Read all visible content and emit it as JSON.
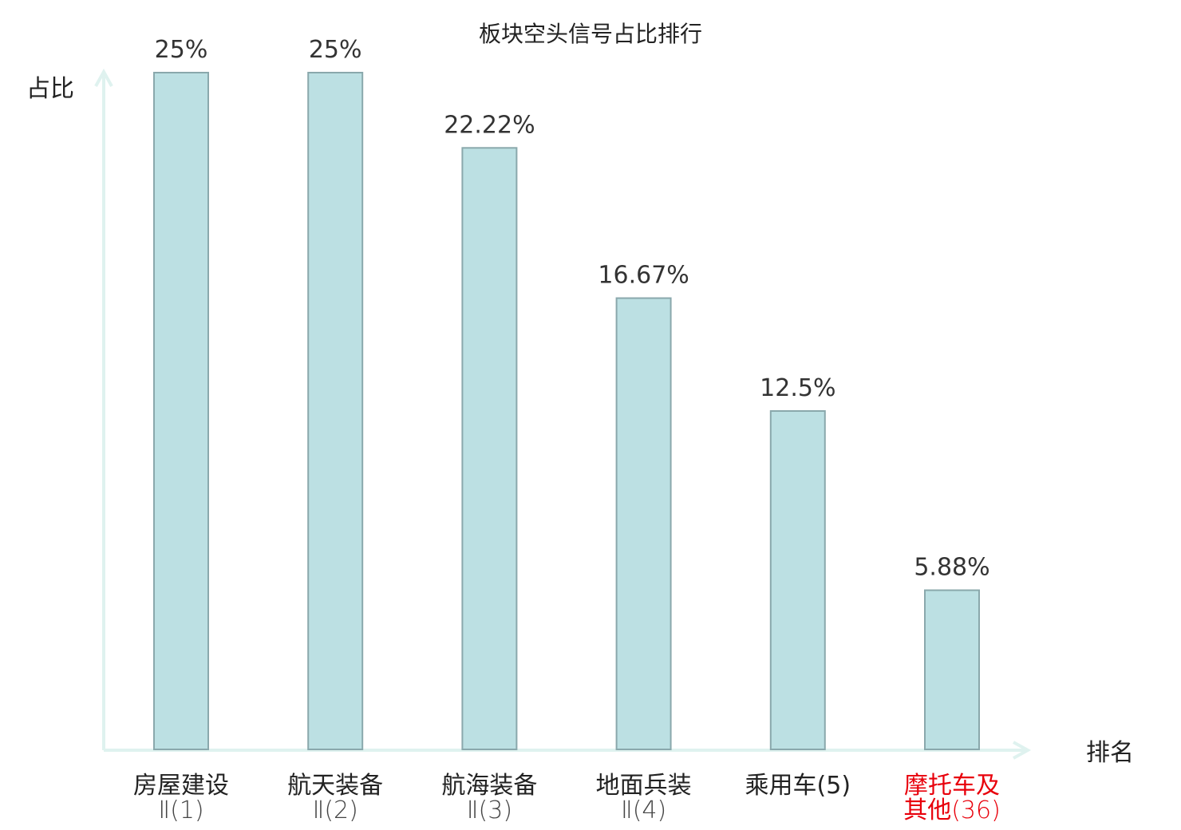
{
  "chart_data": {
    "type": "bar",
    "title": "板块空头信号占比排行",
    "ylabel": "占比",
    "xlabel": "排名",
    "categories": [
      [
        "房屋建设",
        "Ⅱ(1)"
      ],
      [
        "航天装备",
        "Ⅱ(2)"
      ],
      [
        "航海装备",
        "Ⅱ(3)"
      ],
      [
        "地面兵装",
        "Ⅱ(4)"
      ],
      [
        "乘用车(5)"
      ],
      [
        "摩托车及",
        "其他(36)"
      ]
    ],
    "values": [
      25,
      25,
      22.22,
      16.67,
      12.5,
      5.88
    ],
    "value_labels": [
      "25%",
      "25%",
      "22.22%",
      "16.67%",
      "12.5%",
      "5.88%"
    ],
    "highlight_index": 5,
    "ylim": [
      0,
      25
    ],
    "grid": false,
    "legend": "none"
  },
  "colors": {
    "bar_fill": "#bce0e3",
    "bar_stroke": "#8aa8ac",
    "axis": "#dff2ef",
    "text": "#222222",
    "value_text": "#333333",
    "highlight": "#e8000b"
  }
}
